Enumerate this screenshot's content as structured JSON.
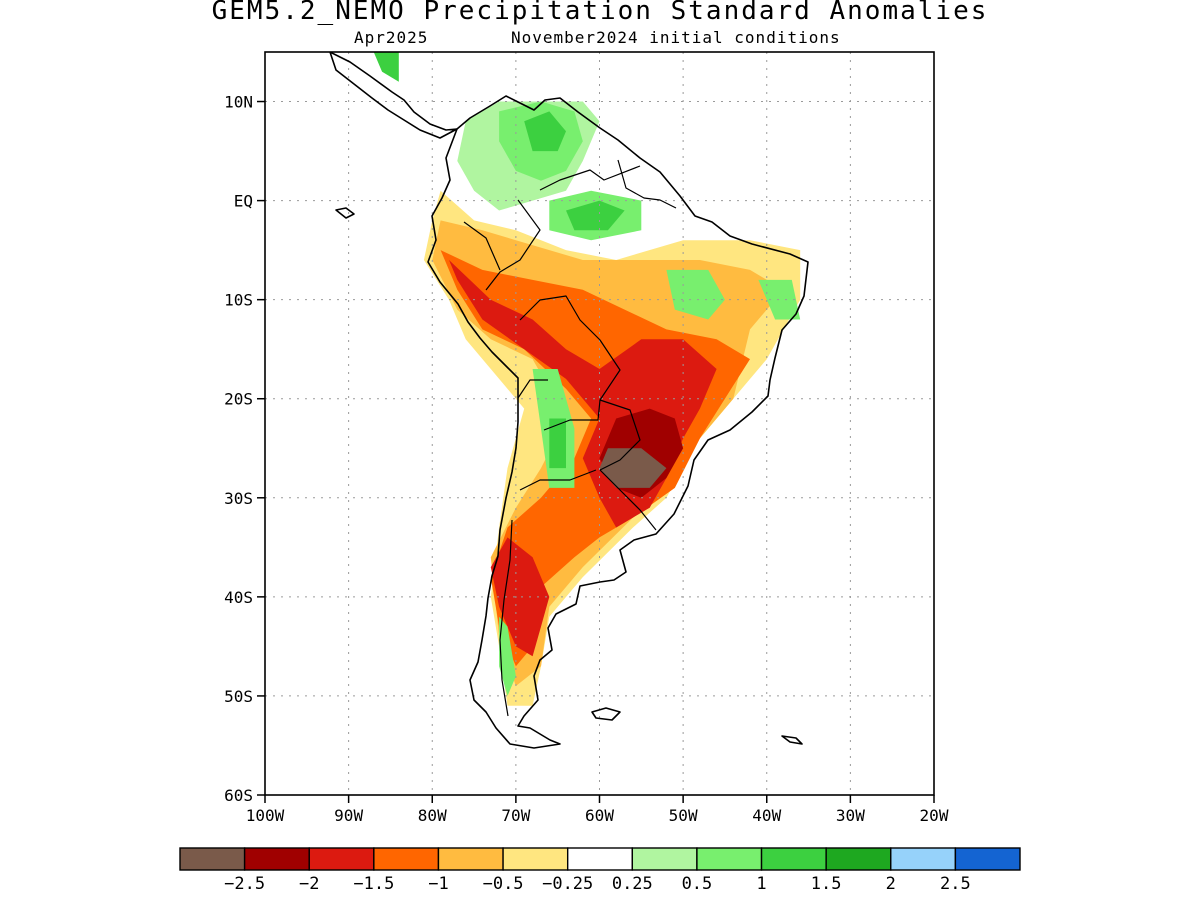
{
  "title": "GEM5.2_NEMO Precipitation Standard Anomalies",
  "subtitle_left": "Apr2025",
  "subtitle_right": "November2024 initial conditions",
  "map": {
    "lon_range": [
      -100,
      -20
    ],
    "lat_range": [
      -60,
      15
    ],
    "lat_ticks": [
      {
        "value": 10,
        "label": "10N"
      },
      {
        "value": 0,
        "label": "EQ"
      },
      {
        "value": -10,
        "label": "10S"
      },
      {
        "value": -20,
        "label": "20S"
      },
      {
        "value": -30,
        "label": "30S"
      },
      {
        "value": -40,
        "label": "40S"
      },
      {
        "value": -50,
        "label": "50S"
      },
      {
        "value": -60,
        "label": "60S"
      }
    ],
    "lon_ticks": [
      {
        "value": -100,
        "label": "100W"
      },
      {
        "value": -90,
        "label": "90W"
      },
      {
        "value": -80,
        "label": "80W"
      },
      {
        "value": -70,
        "label": "70W"
      },
      {
        "value": -60,
        "label": "60W"
      },
      {
        "value": -50,
        "label": "50W"
      },
      {
        "value": -40,
        "label": "40W"
      },
      {
        "value": -30,
        "label": "30W"
      },
      {
        "value": -20,
        "label": "20W"
      }
    ],
    "gridlines": "dotted"
  },
  "colorbar": {
    "colors": [
      "#7a5a4a",
      "#a00000",
      "#dc1a10",
      "#ff6600",
      "#ffbb40",
      "#ffe680",
      "#ffffff",
      "#b0f5a0",
      "#78ef6e",
      "#3cd040",
      "#1ea820",
      "#96d2fa",
      "#1464d2"
    ],
    "labels": [
      "−2.5",
      "−2",
      "−1.5",
      "−1",
      "−0.5",
      "−0.25",
      "0.25",
      "0.5",
      "1",
      "1.5",
      "2",
      "2.5"
    ]
  },
  "anomaly_regions": [
    {
      "level": "-0.25",
      "color": "#ffe680",
      "points": [
        [
          -79,
          1
        ],
        [
          -75,
          -2
        ],
        [
          -70,
          -3
        ],
        [
          -64,
          -5
        ],
        [
          -58,
          -6
        ],
        [
          -50,
          -4
        ],
        [
          -42,
          -4
        ],
        [
          -36,
          -5
        ],
        [
          -36,
          -10
        ],
        [
          -40,
          -16
        ],
        [
          -44,
          -20
        ],
        [
          -48,
          -24
        ],
        [
          -52,
          -30
        ],
        [
          -56,
          -33
        ],
        [
          -62,
          -38
        ],
        [
          -66,
          -42
        ],
        [
          -67,
          -47
        ],
        [
          -68,
          -51
        ],
        [
          -71,
          -51
        ],
        [
          -72,
          -45
        ],
        [
          -73,
          -40
        ],
        [
          -72,
          -33
        ],
        [
          -71,
          -27
        ],
        [
          -69,
          -21
        ],
        [
          -73,
          -17
        ],
        [
          -76,
          -14
        ],
        [
          -78,
          -10
        ],
        [
          -81,
          -6
        ],
        [
          -80,
          -2
        ]
      ]
    },
    {
      "level": "-0.5",
      "color": "#ffbb40",
      "points": [
        [
          -79,
          -2
        ],
        [
          -74,
          -3
        ],
        [
          -70,
          -4
        ],
        [
          -62,
          -6
        ],
        [
          -55,
          -6
        ],
        [
          -48,
          -6
        ],
        [
          -42,
          -7
        ],
        [
          -38,
          -9
        ],
        [
          -42,
          -13
        ],
        [
          -44,
          -20
        ],
        [
          -48,
          -24
        ],
        [
          -51,
          -29
        ],
        [
          -56,
          -32
        ],
        [
          -62,
          -37
        ],
        [
          -66,
          -41
        ],
        [
          -67,
          -47
        ],
        [
          -70,
          -49
        ],
        [
          -72,
          -44
        ],
        [
          -73,
          -36
        ],
        [
          -70,
          -31
        ],
        [
          -67,
          -27
        ],
        [
          -64,
          -22
        ],
        [
          -68,
          -16
        ],
        [
          -73,
          -14
        ],
        [
          -77,
          -11
        ],
        [
          -80,
          -6
        ]
      ]
    },
    {
      "level": "-1",
      "color": "#ff6600",
      "points": [
        [
          -79,
          -5
        ],
        [
          -74,
          -7
        ],
        [
          -68,
          -8
        ],
        [
          -62,
          -9
        ],
        [
          -57,
          -11
        ],
        [
          -52,
          -13
        ],
        [
          -46,
          -14
        ],
        [
          -42,
          -16
        ],
        [
          -45,
          -20
        ],
        [
          -48,
          -24
        ],
        [
          -51,
          -29
        ],
        [
          -56,
          -32
        ],
        [
          -60,
          -34
        ],
        [
          -63,
          -36
        ],
        [
          -67,
          -39
        ],
        [
          -68,
          -45
        ],
        [
          -70,
          -47
        ],
        [
          -72,
          -43
        ],
        [
          -73,
          -38
        ],
        [
          -71,
          -33
        ],
        [
          -67,
          -30
        ],
        [
          -63,
          -26
        ],
        [
          -61,
          -22
        ],
        [
          -64,
          -19
        ],
        [
          -69,
          -15
        ],
        [
          -74,
          -13
        ],
        [
          -77,
          -9
        ]
      ]
    },
    {
      "level": "-1.5",
      "color": "#dc1a10",
      "points": [
        [
          -78,
          -6
        ],
        [
          -73,
          -10
        ],
        [
          -68,
          -12
        ],
        [
          -64,
          -15
        ],
        [
          -60,
          -17
        ],
        [
          -55,
          -14
        ],
        [
          -50,
          -14
        ],
        [
          -46,
          -17
        ],
        [
          -48,
          -21
        ],
        [
          -50,
          -24
        ],
        [
          -52,
          -28
        ],
        [
          -54,
          -31
        ],
        [
          -58,
          -33
        ],
        [
          -60,
          -30
        ],
        [
          -62,
          -26
        ],
        [
          -60,
          -22
        ],
        [
          -64,
          -18
        ],
        [
          -69,
          -15
        ],
        [
          -74,
          -12
        ],
        [
          -77,
          -8
        ]
      ]
    },
    {
      "level": "-1.5",
      "color": "#dc1a10",
      "points": [
        [
          -71,
          -34
        ],
        [
          -68,
          -36
        ],
        [
          -66,
          -40
        ],
        [
          -67,
          -43
        ],
        [
          -68,
          -46
        ],
        [
          -70,
          -45
        ],
        [
          -72,
          -41
        ],
        [
          -73,
          -37
        ]
      ]
    },
    {
      "level": "-2",
      "color": "#a00000",
      "points": [
        [
          -58,
          -22
        ],
        [
          -54,
          -21
        ],
        [
          -51,
          -22
        ],
        [
          -50,
          -25
        ],
        [
          -52,
          -28
        ],
        [
          -55,
          -30
        ],
        [
          -58,
          -29
        ],
        [
          -60,
          -26
        ]
      ]
    },
    {
      "level": "-2.5",
      "color": "#7a5a4a",
      "points": [
        [
          -59,
          -25
        ],
        [
          -55,
          -25
        ],
        [
          -52,
          -27
        ],
        [
          -54,
          -29
        ],
        [
          -58,
          -29
        ],
        [
          -60,
          -27
        ]
      ]
    },
    {
      "level": "0.25",
      "color": "#b0f5a0",
      "points": [
        [
          -76,
          8
        ],
        [
          -72,
          10
        ],
        [
          -66,
          10
        ],
        [
          -62,
          10
        ],
        [
          -60,
          8
        ],
        [
          -62,
          4
        ],
        [
          -64,
          1
        ],
        [
          -68,
          0
        ],
        [
          -72,
          -1
        ],
        [
          -75,
          1
        ],
        [
          -77,
          4
        ]
      ]
    },
    {
      "level": "0.5",
      "color": "#78ef6e",
      "points": [
        [
          -72,
          9
        ],
        [
          -67,
          10
        ],
        [
          -63,
          9
        ],
        [
          -62,
          6
        ],
        [
          -64,
          3
        ],
        [
          -67,
          2
        ],
        [
          -70,
          3
        ],
        [
          -72,
          6
        ]
      ]
    },
    {
      "level": "1",
      "color": "#3cd040",
      "points": [
        [
          -69,
          8
        ],
        [
          -66,
          9
        ],
        [
          -64,
          7
        ],
        [
          -65,
          5
        ],
        [
          -68,
          5
        ]
      ]
    },
    {
      "level": "0.5",
      "color": "#78ef6e",
      "points": [
        [
          -66,
          0
        ],
        [
          -61,
          1
        ],
        [
          -55,
          0
        ],
        [
          -55,
          -3
        ],
        [
          -61,
          -4
        ],
        [
          -66,
          -3
        ]
      ]
    },
    {
      "level": "1",
      "color": "#3cd040",
      "points": [
        [
          -64,
          -1
        ],
        [
          -60,
          0
        ],
        [
          -57,
          -1
        ],
        [
          -59,
          -3
        ],
        [
          -63,
          -3
        ]
      ]
    },
    {
      "level": "0.5",
      "color": "#78ef6e",
      "points": [
        [
          -52,
          -7
        ],
        [
          -47,
          -7
        ],
        [
          -45,
          -10
        ],
        [
          -47,
          -12
        ],
        [
          -51,
          -11
        ]
      ]
    },
    {
      "level": "0.5",
      "color": "#78ef6e",
      "points": [
        [
          -41,
          -8
        ],
        [
          -37,
          -8
        ],
        [
          -36,
          -12
        ],
        [
          -39,
          -12
        ]
      ]
    },
    {
      "level": "0.5",
      "color": "#78ef6e",
      "points": [
        [
          -68,
          -17
        ],
        [
          -65,
          -17
        ],
        [
          -63,
          -23
        ],
        [
          -63,
          -29
        ],
        [
          -66,
          -29
        ],
        [
          -67,
          -23
        ]
      ]
    },
    {
      "level": "1",
      "color": "#3cd040",
      "points": [
        [
          -66,
          -22
        ],
        [
          -64,
          -22
        ],
        [
          -64,
          -27
        ],
        [
          -66,
          -27
        ]
      ]
    },
    {
      "level": "1",
      "color": "#3cd040",
      "points": [
        [
          -87,
          15
        ],
        [
          -84,
          15
        ],
        [
          -84,
          12
        ],
        [
          -86,
          13
        ]
      ]
    },
    {
      "level": "0.5",
      "color": "#78ef6e",
      "points": [
        [
          -72,
          -42
        ],
        [
          -71,
          -43
        ],
        [
          -70,
          -48
        ],
        [
          -71,
          -50
        ],
        [
          -72,
          -47
        ]
      ]
    }
  ]
}
